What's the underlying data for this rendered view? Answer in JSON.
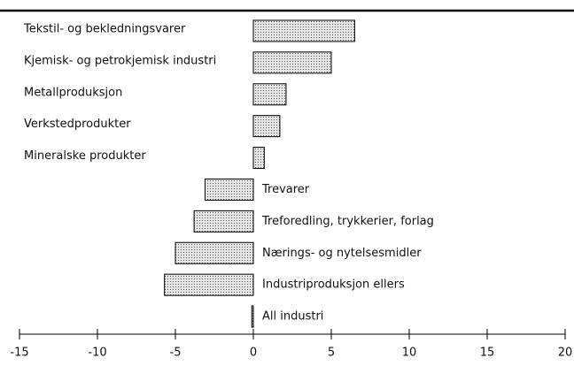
{
  "chart_data": {
    "type": "bar",
    "horizontal": true,
    "categories": [
      "Tekstil- og bekledningsvarer",
      "Kjemisk- og petrokjemisk industri",
      "Metallproduksjon",
      "Verkstedprodukter",
      "Mineralske produkter",
      "Trevarer",
      "Treforedling, trykkerier, forlag",
      "Nærings- og nytelsesmidler",
      "Industriproduksjon ellers",
      "All industri"
    ],
    "values": [
      6.5,
      5.0,
      2.1,
      1.7,
      0.7,
      -3.1,
      -3.8,
      -5.0,
      -5.7,
      -0.1
    ],
    "color": "#bbbbbb",
    "xlim": [
      -15,
      20
    ],
    "xticks": [
      -15,
      -10,
      -5,
      0,
      5,
      10,
      15,
      20
    ],
    "grid": false
  }
}
